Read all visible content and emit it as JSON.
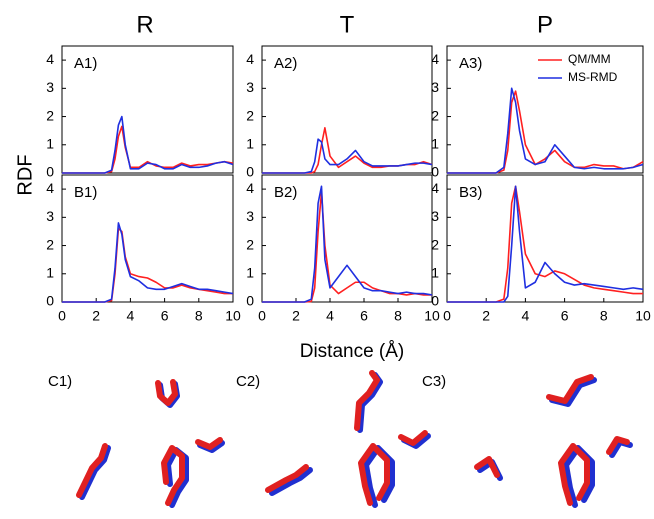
{
  "figure": {
    "columns": [
      "R",
      "T",
      "P"
    ],
    "y_label": "RDF",
    "x_label": "Distance (Å)"
  },
  "molecules": {
    "labels": [
      "C1)",
      "C2)",
      "C3)"
    ]
  },
  "chart_data": [
    {
      "type": "line",
      "panel_label": "A1)",
      "xlim": [
        0,
        10
      ],
      "ylim": [
        0,
        4.5
      ],
      "yticks": [
        0,
        1,
        2,
        3,
        4
      ],
      "x": [
        0,
        2.5,
        2.9,
        3.1,
        3.3,
        3.5,
        3.7,
        4.0,
        4.5,
        5.0,
        5.5,
        6.0,
        6.5,
        7.0,
        7.5,
        8.0,
        8.5,
        9.0,
        9.5,
        10
      ],
      "series": [
        {
          "color": "#ff2020",
          "values": [
            0,
            0,
            0.05,
            0.5,
            1.3,
            1.65,
            0.9,
            0.2,
            0.2,
            0.4,
            0.25,
            0.2,
            0.2,
            0.35,
            0.25,
            0.3,
            0.3,
            0.35,
            0.4,
            0.35
          ]
        },
        {
          "color": "#1f2fe0",
          "values": [
            0,
            0,
            0.1,
            0.8,
            1.7,
            2.0,
            1.0,
            0.15,
            0.15,
            0.35,
            0.3,
            0.15,
            0.15,
            0.3,
            0.2,
            0.2,
            0.25,
            0.35,
            0.4,
            0.3
          ]
        }
      ]
    },
    {
      "type": "line",
      "panel_label": "A2)",
      "xlim": [
        0,
        10
      ],
      "ylim": [
        0,
        4.5
      ],
      "yticks": [
        0,
        1,
        2,
        3,
        4
      ],
      "x": [
        0,
        2.5,
        2.9,
        3.1,
        3.3,
        3.5,
        3.7,
        4.0,
        4.5,
        5.0,
        5.5,
        6.0,
        6.5,
        7.0,
        7.5,
        8.0,
        8.5,
        9.0,
        9.5,
        10
      ],
      "series": [
        {
          "color": "#ff2020",
          "values": [
            0,
            0,
            0,
            0.05,
            0.3,
            1.0,
            1.6,
            0.6,
            0.2,
            0.4,
            0.6,
            0.35,
            0.2,
            0.2,
            0.25,
            0.25,
            0.3,
            0.3,
            0.4,
            0.3
          ]
        },
        {
          "color": "#1f2fe0",
          "values": [
            0,
            0,
            0.05,
            0.4,
            1.2,
            1.1,
            0.5,
            0.3,
            0.3,
            0.5,
            0.8,
            0.4,
            0.25,
            0.25,
            0.25,
            0.25,
            0.3,
            0.35,
            0.35,
            0.3
          ]
        }
      ]
    },
    {
      "type": "line",
      "panel_label": "A3)",
      "xlim": [
        0,
        10
      ],
      "ylim": [
        0,
        4.5
      ],
      "yticks": [
        0,
        1,
        2,
        3,
        4
      ],
      "legend": "upper right",
      "x": [
        0,
        2.5,
        2.9,
        3.1,
        3.3,
        3.5,
        3.7,
        4.0,
        4.5,
        5.0,
        5.5,
        6.0,
        6.5,
        7.0,
        7.5,
        8.0,
        8.5,
        9.0,
        9.5,
        10
      ],
      "series": [
        {
          "name": "QM/MM",
          "color": "#ff2020",
          "values": [
            0,
            0,
            0.1,
            0.8,
            2.5,
            2.9,
            2.2,
            1.0,
            0.3,
            0.5,
            0.8,
            0.4,
            0.2,
            0.2,
            0.3,
            0.25,
            0.25,
            0.15,
            0.2,
            0.4
          ]
        },
        {
          "name": "MS-RMD",
          "color": "#1f2fe0",
          "values": [
            0,
            0,
            0.2,
            1.4,
            3.0,
            2.5,
            1.5,
            0.5,
            0.3,
            0.4,
            1.0,
            0.6,
            0.2,
            0.15,
            0.2,
            0.15,
            0.15,
            0.15,
            0.2,
            0.3
          ]
        }
      ]
    },
    {
      "type": "line",
      "panel_label": "B1)",
      "xlim": [
        0,
        10
      ],
      "ylim": [
        0,
        4.5
      ],
      "yticks": [
        0,
        1,
        2,
        3,
        4
      ],
      "xticks": [
        0,
        2,
        4,
        6,
        8,
        10
      ],
      "x": [
        0,
        2.5,
        2.9,
        3.1,
        3.3,
        3.5,
        3.7,
        4.0,
        4.5,
        5.0,
        5.5,
        6.0,
        6.5,
        7.0,
        7.5,
        8.0,
        8.5,
        9.0,
        9.5,
        10
      ],
      "series": [
        {
          "color": "#ff2020",
          "values": [
            0,
            0,
            0.05,
            1.0,
            2.6,
            2.5,
            1.6,
            1.0,
            0.9,
            0.85,
            0.7,
            0.5,
            0.5,
            0.6,
            0.5,
            0.45,
            0.4,
            0.35,
            0.3,
            0.3
          ]
        },
        {
          "color": "#1f2fe0",
          "values": [
            0,
            0,
            0.1,
            1.2,
            2.8,
            2.4,
            1.5,
            0.9,
            0.75,
            0.5,
            0.45,
            0.45,
            0.55,
            0.65,
            0.55,
            0.45,
            0.45,
            0.4,
            0.35,
            0.3
          ]
        }
      ]
    },
    {
      "type": "line",
      "panel_label": "B2)",
      "xlim": [
        0,
        10
      ],
      "ylim": [
        0,
        4.5
      ],
      "yticks": [
        0,
        1,
        2,
        3,
        4
      ],
      "xticks": [
        0,
        2,
        4,
        6,
        8,
        10
      ],
      "x": [
        0,
        2.5,
        2.9,
        3.1,
        3.3,
        3.5,
        3.7,
        4.0,
        4.5,
        5.0,
        5.5,
        6.0,
        6.5,
        7.0,
        7.5,
        8.0,
        8.5,
        9.0,
        9.5,
        10
      ],
      "series": [
        {
          "color": "#ff2020",
          "values": [
            0,
            0,
            0.02,
            0.5,
            2.5,
            3.9,
            2.0,
            0.6,
            0.3,
            0.5,
            0.7,
            0.7,
            0.5,
            0.4,
            0.3,
            0.3,
            0.25,
            0.3,
            0.25,
            0.25
          ]
        },
        {
          "color": "#1f2fe0",
          "values": [
            0,
            0,
            0.1,
            1.2,
            3.5,
            4.1,
            1.5,
            0.5,
            0.9,
            1.3,
            0.9,
            0.5,
            0.4,
            0.4,
            0.35,
            0.3,
            0.35,
            0.3,
            0.3,
            0.25
          ]
        }
      ]
    },
    {
      "type": "line",
      "panel_label": "B3)",
      "xlim": [
        0,
        10
      ],
      "ylim": [
        0,
        4.5
      ],
      "yticks": [
        0,
        1,
        2,
        3,
        4
      ],
      "xticks": [
        0,
        2,
        4,
        6,
        8,
        10
      ],
      "x": [
        0,
        2.5,
        2.9,
        3.1,
        3.3,
        3.5,
        3.7,
        4.0,
        4.5,
        5.0,
        5.5,
        6.0,
        6.5,
        7.0,
        7.5,
        8.0,
        8.5,
        9.0,
        9.5,
        10
      ],
      "series": [
        {
          "color": "#ff2020",
          "values": [
            0,
            0,
            0.1,
            1.2,
            3.5,
            4.1,
            3.2,
            1.7,
            1.0,
            0.9,
            1.1,
            1.0,
            0.8,
            0.6,
            0.5,
            0.45,
            0.4,
            0.35,
            0.3,
            0.3
          ]
        },
        {
          "color": "#1f2fe0",
          "values": [
            0,
            0,
            0,
            0.2,
            2.0,
            4.1,
            2.5,
            0.5,
            0.7,
            1.4,
            1.0,
            0.7,
            0.6,
            0.65,
            0.6,
            0.55,
            0.5,
            0.45,
            0.5,
            0.45
          ]
        }
      ]
    }
  ]
}
